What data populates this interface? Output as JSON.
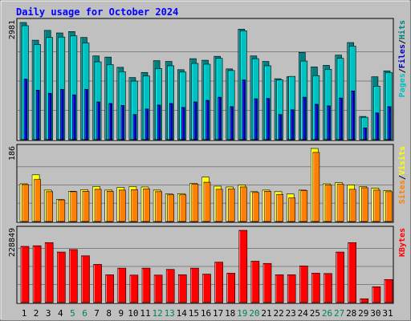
{
  "title": "Daily usage for October 2024",
  "colors": {
    "background": "#C0C0C0",
    "panel": "#C0C0C0",
    "grid": "#808080",
    "title": "#0000FF",
    "hits": "#00C0C0",
    "hits_light": "#00FFFF",
    "files": "#008080",
    "files_light": "#00C0A0",
    "pages": "#0000C0",
    "visits": "#FFFF00",
    "sites": "#FF8000",
    "kbytes": "#FF0000",
    "weekend_label": "#00805C",
    "weekday_label": "#000000"
  },
  "chart_data": [
    {
      "type": "bar",
      "panel": "hits-files-pages",
      "ymax": 2981,
      "ymax_label": "2981",
      "legend": [
        {
          "name": "Pages",
          "color": "#00C0C0"
        },
        {
          "name": "/",
          "color": "#000000"
        },
        {
          "name": "Files",
          "color": "#0000C0"
        },
        {
          "name": "/",
          "color": "#000000"
        },
        {
          "name": "Hits",
          "color": "#008080"
        }
      ],
      "categories": [
        "1",
        "2",
        "3",
        "4",
        "5",
        "6",
        "7",
        "8",
        "9",
        "10",
        "11",
        "12",
        "13",
        "14",
        "15",
        "16",
        "17",
        "18",
        "19",
        "20",
        "21",
        "22",
        "23",
        "24",
        "25",
        "26",
        "27",
        "28",
        "29",
        "30",
        "31"
      ],
      "weekend": [
        false,
        false,
        false,
        false,
        true,
        true,
        false,
        false,
        false,
        false,
        false,
        true,
        true,
        false,
        false,
        false,
        false,
        false,
        true,
        true,
        false,
        false,
        false,
        false,
        false,
        true,
        true,
        false,
        false,
        false,
        false
      ],
      "series": [
        {
          "name": "Hits",
          "values": [
            2981,
            2530,
            2780,
            2715,
            2750,
            2600,
            2130,
            2100,
            1840,
            1580,
            1710,
            2010,
            1990,
            1780,
            2060,
            2020,
            2120,
            1800,
            2810,
            2130,
            1990,
            1550,
            1600,
            2220,
            1850,
            1890,
            2150,
            2470,
            590,
            1600,
            1750
          ]
        },
        {
          "name": "Files",
          "values": [
            2900,
            2420,
            2600,
            2610,
            2640,
            2460,
            1980,
            1910,
            1730,
            1490,
            1620,
            1810,
            1880,
            1720,
            1940,
            1920,
            2070,
            1760,
            2770,
            2060,
            1880,
            1520,
            1610,
            2000,
            1630,
            1790,
            2070,
            2380,
            570,
            1360,
            1710
          ]
        },
        {
          "name": "Pages",
          "values": [
            1540,
            1260,
            1180,
            1280,
            1140,
            1280,
            960,
            920,
            870,
            640,
            780,
            880,
            920,
            820,
            960,
            1000,
            1080,
            840,
            1520,
            1040,
            1050,
            640,
            760,
            1080,
            900,
            860,
            1060,
            1240,
            300,
            680,
            840
          ]
        }
      ]
    },
    {
      "type": "bar",
      "panel": "visits-sites",
      "ymax": 186,
      "ymax_label": "186",
      "legend": [
        {
          "name": "Sites",
          "color": "#FF8000"
        },
        {
          "name": "/",
          "color": "#000000"
        },
        {
          "name": "Visits",
          "color": "#FFFF00"
        }
      ],
      "categories": [
        "1",
        "2",
        "3",
        "4",
        "5",
        "6",
        "7",
        "8",
        "9",
        "10",
        "11",
        "12",
        "13",
        "14",
        "15",
        "16",
        "17",
        "18",
        "19",
        "20",
        "21",
        "22",
        "23",
        "24",
        "25",
        "26",
        "27",
        "28",
        "29",
        "30",
        "31"
      ],
      "series": [
        {
          "name": "Visits",
          "values": [
            96,
            119,
            80,
            56,
            77,
            81,
            89,
            80,
            87,
            89,
            88,
            80,
            70,
            71,
            97,
            113,
            90,
            88,
            93,
            76,
            80,
            76,
            70,
            80,
            186,
            96,
            99,
            93,
            89,
            85,
            79
          ]
        },
        {
          "name": "Sites",
          "values": [
            94,
            107,
            76,
            55,
            76,
            77,
            82,
            77,
            80,
            81,
            83,
            76,
            68,
            68,
            95,
            100,
            82,
            83,
            88,
            74,
            77,
            69,
            60,
            79,
            176,
            93,
            95,
            82,
            86,
            80,
            76
          ]
        }
      ]
    },
    {
      "type": "bar",
      "panel": "kbytes",
      "ymax": 228849,
      "ymax_label": "228849",
      "legend": [
        {
          "name": "KBytes",
          "color": "#FF0000"
        }
      ],
      "categories": [
        "1",
        "2",
        "3",
        "4",
        "5",
        "6",
        "7",
        "8",
        "9",
        "10",
        "11",
        "12",
        "13",
        "14",
        "15",
        "16",
        "17",
        "18",
        "19",
        "20",
        "21",
        "22",
        "23",
        "24",
        "25",
        "26",
        "27",
        "28",
        "29",
        "30",
        "31"
      ],
      "series": [
        {
          "name": "KBytes",
          "values": [
            178000,
            180000,
            190000,
            160000,
            168000,
            148000,
            121000,
            88000,
            109000,
            87000,
            109000,
            87000,
            105000,
            88000,
            109000,
            90000,
            128000,
            93000,
            228849,
            131000,
            124000,
            88000,
            88000,
            116000,
            93000,
            92000,
            160000,
            190000,
            12000,
            50000,
            73000
          ]
        }
      ]
    }
  ]
}
